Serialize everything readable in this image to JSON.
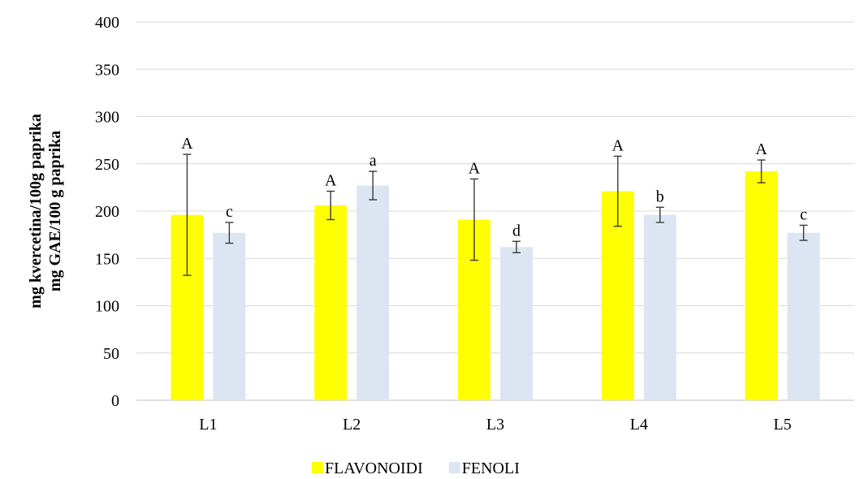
{
  "chart_data": {
    "type": "bar",
    "title": "",
    "xlabel": "",
    "ylabel_lines": [
      "mg kvercetina/100g paprika",
      "mg GAE/100 g paprika"
    ],
    "ylim": [
      0,
      400
    ],
    "yticks": [
      0,
      50,
      100,
      150,
      200,
      250,
      300,
      350,
      400
    ],
    "grid": true,
    "legend_position": "bottom",
    "categories": [
      "L1",
      "L2",
      "L3",
      "L4",
      "L5"
    ],
    "series": [
      {
        "name": "FLAVONOIDI",
        "color": "#FFFF00",
        "values": [
          196,
          206,
          191,
          221,
          242
        ],
        "errors": [
          64,
          15,
          43,
          37,
          12
        ],
        "labels": [
          "A",
          "A",
          "A",
          "A",
          "A"
        ]
      },
      {
        "name": "FENOLI",
        "color": "#DCE6F2",
        "values": [
          177,
          227,
          162,
          196,
          177
        ],
        "errors": [
          11,
          15,
          6,
          8,
          8
        ],
        "labels": [
          "c",
          "a",
          "d",
          "b",
          "c"
        ]
      }
    ]
  }
}
